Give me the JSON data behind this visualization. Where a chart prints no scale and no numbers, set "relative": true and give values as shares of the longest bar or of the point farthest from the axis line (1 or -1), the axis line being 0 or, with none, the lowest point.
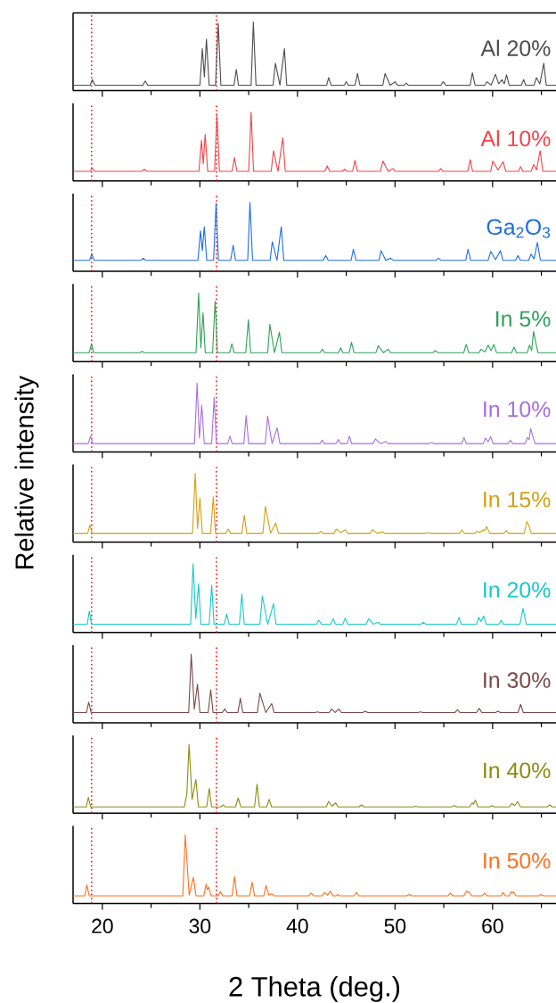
{
  "chart_data": [
    {
      "type": "line",
      "relative": true,
      "xlim": [
        17,
        66.5
      ],
      "tick_labels": false,
      "xticks": [
        20,
        {
          "value": 25,
          "label": null
        },
        30,
        {
          "value": 35,
          "label": null
        },
        40,
        {
          "value": 45,
          "label": null
        },
        50,
        {
          "value": 55,
          "label": null
        },
        60,
        {
          "value": 65,
          "label": null
        }
      ],
      "ref_lines": [
        {
          "axis": "x",
          "value": 18.9,
          "color": "#ff0000",
          "line_style": "dotted"
        },
        {
          "axis": "x",
          "value": 31.7,
          "color": "#ff0000",
          "line_style": "dotted"
        }
      ],
      "x": [
        17,
        18.75,
        18.98,
        19.25,
        24.15,
        24.4,
        24.65,
        30.0,
        30.25,
        30.46,
        30.67,
        30.95,
        31.6,
        31.88,
        32.15,
        33.5,
        33.73,
        33.95,
        35.25,
        35.48,
        35.75,
        37.5,
        37.74,
        38.2,
        38.66,
        38.9,
        43.0,
        43.2,
        43.45,
        44.8,
        45.0,
        45.2,
        45.9,
        46.15,
        46.4,
        48.75,
        48.98,
        49.5,
        50.0,
        50.25,
        50.95,
        51.15,
        51.35,
        54.7,
        54.94,
        55.2,
        57.7,
        57.93,
        58.2,
        59.2,
        59.43,
        59.85,
        60.29,
        60.62,
        60.96,
        61.2,
        61.43,
        61.7,
        62.95,
        63.18,
        63.4,
        64.25,
        64.49,
        64.85,
        65.25,
        65.5,
        66.5
      ],
      "series": [
        {
          "name": "Al 20%",
          "color": "#4d4d4d",
          "values": [
            0.08,
            0.08,
            0.16,
            0.08,
            0.08,
            0.14,
            0.08,
            0.08,
            0.61,
            0.2,
            0.75,
            0.08,
            0.08,
            0.98,
            0.08,
            0.08,
            0.31,
            0.08,
            0.08,
            1,
            0.08,
            0.08,
            0.4,
            0.08,
            0.61,
            0.08,
            0.08,
            0.19,
            0.08,
            0.08,
            0.13,
            0.08,
            0.08,
            0.25,
            0.08,
            0.08,
            0.25,
            0.08,
            0.13,
            0.08,
            0.08,
            0.11,
            0.08,
            0.08,
            0.13,
            0.08,
            0.08,
            0.26,
            0.08,
            0.08,
            0.13,
            0.08,
            0.24,
            0.1,
            0.16,
            0.1,
            0.23,
            0.08,
            0.08,
            0.16,
            0.08,
            0.08,
            0.19,
            0.1,
            0.4,
            0.08,
            0.08
          ]
        }
      ]
    },
    {
      "type": "line",
      "relative": true,
      "xlim": [
        17,
        66.5
      ],
      "tick_labels": false,
      "xticks": [
        20,
        {
          "value": 25,
          "label": null
        },
        30,
        {
          "value": 35,
          "label": null
        },
        40,
        {
          "value": 45,
          "label": null
        },
        50,
        {
          "value": 55,
          "label": null
        },
        60,
        {
          "value": 65,
          "label": null
        }
      ],
      "ref_lines": [
        {
          "axis": "x",
          "value": 18.9,
          "color": "#ff0000",
          "line_style": "dotted"
        },
        {
          "axis": "x",
          "value": 31.7,
          "color": "#ff0000",
          "line_style": "dotted"
        }
      ],
      "x": [
        17,
        18.75,
        18.98,
        19.2,
        24.05,
        24.3,
        24.55,
        29.9,
        30.16,
        30.35,
        30.54,
        30.8,
        31.5,
        31.75,
        32.0,
        33.3,
        33.54,
        33.8,
        35.0,
        35.25,
        35.5,
        37.3,
        37.55,
        38.0,
        38.5,
        38.75,
        42.8,
        43.06,
        43.3,
        44.6,
        44.84,
        45.1,
        45.65,
        45.89,
        46.15,
        48.5,
        48.76,
        49.3,
        49.78,
        50.0,
        54.45,
        54.68,
        54.9,
        57.45,
        57.71,
        57.95,
        59.8,
        60.03,
        60.55,
        61.08,
        61.35,
        62.65,
        62.87,
        63.1,
        63.95,
        64.2,
        64.5,
        64.87,
        65.15,
        66.5
      ],
      "series": [
        {
          "name": "Al 10%",
          "color": "#f0444a",
          "values": [
            0.14,
            0.14,
            0.19,
            0.14,
            0.14,
            0.17,
            0.14,
            0.14,
            0.59,
            0.25,
            0.68,
            0.14,
            0.14,
            0.96,
            0.14,
            0.14,
            0.34,
            0.14,
            0.14,
            1,
            0.14,
            0.14,
            0.44,
            0.14,
            0.63,
            0.14,
            0.14,
            0.22,
            0.14,
            0.14,
            0.17,
            0.14,
            0.14,
            0.3,
            0.14,
            0.14,
            0.29,
            0.14,
            0.18,
            0.14,
            0.14,
            0.18,
            0.14,
            0.14,
            0.31,
            0.14,
            0.14,
            0.29,
            0.16,
            0.28,
            0.14,
            0.14,
            0.21,
            0.14,
            0.14,
            0.24,
            0.16,
            0.44,
            0.14,
            0.14
          ]
        }
      ]
    },
    {
      "type": "line",
      "relative": true,
      "xlim": [
        17,
        66.5
      ],
      "tick_labels": false,
      "xticks": [
        20,
        {
          "value": 25,
          "label": null
        },
        30,
        {
          "value": 35,
          "label": null
        },
        40,
        {
          "value": 45,
          "label": null
        },
        50,
        {
          "value": 55,
          "label": null
        },
        60,
        {
          "value": 65,
          "label": null
        }
      ],
      "ref_lines": [
        {
          "axis": "x",
          "value": 18.9,
          "color": "#ff0000",
          "line_style": "dotted"
        },
        {
          "axis": "x",
          "value": 31.7,
          "color": "#ff0000",
          "line_style": "dotted"
        }
      ],
      "x": [
        17,
        18.7,
        18.92,
        19.15,
        23.95,
        24.2,
        24.45,
        29.8,
        30.06,
        30.25,
        30.45,
        30.7,
        31.4,
        31.66,
        31.9,
        33.15,
        33.41,
        33.65,
        34.9,
        35.13,
        35.4,
        37.2,
        37.42,
        37.9,
        38.34,
        38.6,
        42.65,
        42.9,
        43.15,
        45.5,
        45.73,
        46.0,
        48.35,
        48.57,
        49.05,
        49.55,
        49.8,
        54.2,
        54.46,
        54.7,
        57.25,
        57.48,
        57.75,
        59.55,
        59.81,
        60.3,
        60.8,
        61.05,
        62.35,
        62.6,
        62.85,
        63.7,
        63.94,
        64.25,
        64.59,
        64.9,
        66.5
      ],
      "series": [
        {
          "name": "Ga$_{2}$O$_{3}$",
          "color": "#1f6fe0",
          "values": [
            0.16,
            0.16,
            0.25,
            0.16,
            0.16,
            0.19,
            0.16,
            0.16,
            0.59,
            0.3,
            0.65,
            0.16,
            0.16,
            0.99,
            0.16,
            0.16,
            0.38,
            0.16,
            0.16,
            1,
            0.16,
            0.16,
            0.43,
            0.16,
            0.65,
            0.16,
            0.16,
            0.23,
            0.16,
            0.16,
            0.32,
            0.16,
            0.16,
            0.3,
            0.16,
            0.19,
            0.16,
            0.16,
            0.19,
            0.16,
            0.16,
            0.32,
            0.16,
            0.16,
            0.29,
            0.17,
            0.3,
            0.16,
            0.16,
            0.23,
            0.16,
            0.16,
            0.25,
            0.18,
            0.42,
            0.16,
            0.16
          ]
        }
      ]
    },
    {
      "type": "line",
      "relative": true,
      "xlim": [
        17,
        66.5
      ],
      "tick_labels": false,
      "xticks": [
        20,
        {
          "value": 25,
          "label": null
        },
        30,
        {
          "value": 35,
          "label": null
        },
        40,
        {
          "value": 45,
          "label": null
        },
        50,
        {
          "value": 55,
          "label": null
        },
        60,
        {
          "value": 65,
          "label": null
        }
      ],
      "ref_lines": [
        {
          "axis": "x",
          "value": 18.9,
          "color": "#ff0000",
          "line_style": "dotted"
        },
        {
          "axis": "x",
          "value": 31.7,
          "color": "#ff0000",
          "line_style": "dotted"
        }
      ],
      "x": [
        17,
        18.65,
        18.89,
        19.1,
        23.85,
        24.08,
        24.3,
        29.6,
        29.87,
        30.1,
        30.32,
        30.55,
        31.3,
        31.56,
        31.8,
        33.05,
        33.28,
        33.5,
        34.7,
        34.97,
        35.2,
        36.95,
        37.17,
        37.65,
        38.15,
        38.4,
        42.3,
        42.55,
        42.8,
        44.2,
        44.43,
        44.65,
        45.3,
        45.54,
        45.8,
        48.05,
        48.28,
        48.8,
        49.3,
        49.55,
        53.9,
        54.14,
        54.4,
        57.05,
        57.29,
        57.55,
        58.6,
        58.82,
        59.2,
        59.55,
        59.85,
        60.13,
        60.4,
        61.95,
        62.2,
        62.45,
        63.55,
        63.79,
        64.0,
        64.2,
        64.39,
        64.65,
        66.5
      ],
      "series": [
        {
          "name": "In 5%",
          "color": "#2ea05a",
          "values": [
            0.13,
            0.13,
            0.26,
            0.13,
            0.13,
            0.15,
            0.13,
            0.13,
            1,
            0.2,
            0.71,
            0.13,
            0.13,
            0.88,
            0.13,
            0.13,
            0.26,
            0.13,
            0.13,
            0.61,
            0.13,
            0.13,
            0.54,
            0.13,
            0.43,
            0.13,
            0.13,
            0.18,
            0.13,
            0.13,
            0.2,
            0.13,
            0.13,
            0.28,
            0.13,
            0.13,
            0.23,
            0.13,
            0.18,
            0.13,
            0.13,
            0.16,
            0.13,
            0.13,
            0.25,
            0.13,
            0.13,
            0.18,
            0.14,
            0.24,
            0.16,
            0.25,
            0.13,
            0.13,
            0.21,
            0.13,
            0.13,
            0.24,
            0.16,
            0.44,
            0.3,
            0.13,
            0.13
          ]
        }
      ]
    },
    {
      "type": "line",
      "relative": true,
      "xlim": [
        17,
        66.5
      ],
      "tick_labels": false,
      "xticks": [
        20,
        {
          "value": 25,
          "label": null
        },
        30,
        {
          "value": 35,
          "label": null
        },
        40,
        {
          "value": 45,
          "label": null
        },
        50,
        {
          "value": 55,
          "label": null
        },
        60,
        {
          "value": 65,
          "label": null
        }
      ],
      "ref_lines": [
        {
          "axis": "x",
          "value": 18.9,
          "color": "#ff0000",
          "line_style": "dotted"
        },
        {
          "axis": "x",
          "value": 31.7,
          "color": "#ff0000",
          "line_style": "dotted"
        }
      ],
      "x": [
        17,
        18.55,
        18.79,
        19.0,
        29.45,
        29.71,
        29.95,
        30.19,
        30.45,
        31.2,
        31.46,
        31.7,
        32.85,
        33.09,
        33.3,
        34.5,
        34.74,
        35.0,
        36.7,
        36.94,
        37.4,
        37.92,
        38.2,
        42.3,
        42.54,
        42.75,
        43.95,
        44.2,
        44.45,
        45.1,
        45.32,
        45.55,
        47.75,
        47.99,
        48.5,
        49.04,
        49.3,
        53.5,
        53.76,
        54.0,
        56.85,
        57.07,
        57.3,
        59.05,
        59.27,
        59.55,
        59.81,
        60.05,
        61.6,
        61.82,
        62.05,
        63.35,
        63.57,
        63.75,
        63.89,
        64.08,
        64.35,
        66.5
      ],
      "series": [
        {
          "name": "In 10%",
          "color": "#a86ee0",
          "values": [
            0.12,
            0.12,
            0.23,
            0.12,
            0.12,
            1,
            0.2,
            0.68,
            0.12,
            0.12,
            0.79,
            0.12,
            0.12,
            0.23,
            0.12,
            0.12,
            0.53,
            0.12,
            0.12,
            0.52,
            0.12,
            0.35,
            0.12,
            0.12,
            0.17,
            0.12,
            0.12,
            0.18,
            0.12,
            0.12,
            0.23,
            0.12,
            0.12,
            0.19,
            0.12,
            0.15,
            0.12,
            0.12,
            0.14,
            0.12,
            0.12,
            0.21,
            0.12,
            0.12,
            0.2,
            0.15,
            0.22,
            0.12,
            0.12,
            0.17,
            0.12,
            0.12,
            0.21,
            0.18,
            0.34,
            0.25,
            0.12,
            0.12
          ]
        }
      ]
    },
    {
      "type": "line",
      "relative": true,
      "xlim": [
        17,
        66.5
      ],
      "tick_labels": false,
      "ylabel": "Relative intensity",
      "xticks": [
        20,
        {
          "value": 25,
          "label": null
        },
        30,
        {
          "value": 35,
          "label": null
        },
        40,
        {
          "value": 45,
          "label": null
        },
        50,
        {
          "value": 55,
          "label": null
        },
        60,
        {
          "value": 65,
          "label": null
        }
      ],
      "ref_lines": [
        {
          "axis": "x",
          "value": 18.9,
          "color": "#ff0000",
          "line_style": "dotted"
        },
        {
          "axis": "x",
          "value": 31.7,
          "color": "#ff0000",
          "line_style": "dotted"
        }
      ],
      "x": [
        17,
        18.5,
        18.73,
        18.95,
        29.25,
        29.52,
        29.76,
        30.0,
        30.25,
        31.1,
        31.37,
        31.6,
        32.65,
        32.9,
        33.15,
        34.3,
        34.55,
        34.8,
        36.45,
        36.72,
        37.25,
        37.77,
        38.05,
        42.15,
        42.39,
        42.6,
        43.75,
        43.98,
        44.45,
        44.9,
        45.15,
        47.45,
        47.68,
        48.2,
        48.69,
        48.95,
        53.15,
        53.38,
        53.6,
        56.6,
        56.85,
        57.1,
        58.2,
        58.41,
        58.7,
        59.04,
        59.2,
        59.39,
        59.7,
        61.15,
        61.4,
        61.65,
        63.25,
        63.5,
        63.6,
        63.69,
        63.95,
        66.5
      ],
      "series": [
        {
          "name": "In 15%",
          "color": "#d4a010",
          "values": [
            0.13,
            0.13,
            0.25,
            0.13,
            0.13,
            1,
            0.2,
            0.64,
            0.13,
            0.13,
            0.66,
            0.13,
            0.13,
            0.19,
            0.13,
            0.13,
            0.39,
            0.13,
            0.13,
            0.52,
            0.13,
            0.28,
            0.13,
            0.13,
            0.16,
            0.13,
            0.13,
            0.19,
            0.14,
            0.18,
            0.13,
            0.13,
            0.18,
            0.13,
            0.15,
            0.13,
            0.13,
            0.14,
            0.13,
            0.13,
            0.18,
            0.13,
            0.13,
            0.16,
            0.14,
            0.18,
            0.17,
            0.23,
            0.13,
            0.13,
            0.17,
            0.13,
            0.13,
            0.3,
            0.27,
            0.26,
            0.13,
            0.13
          ]
        }
      ]
    },
    {
      "type": "line",
      "relative": true,
      "xlim": [
        17,
        66.5
      ],
      "tick_labels": false,
      "xticks": [
        20,
        {
          "value": 25,
          "label": null
        },
        30,
        {
          "value": 35,
          "label": null
        },
        40,
        {
          "value": 45,
          "label": null
        },
        50,
        {
          "value": 55,
          "label": null
        },
        60,
        {
          "value": 65,
          "label": null
        }
      ],
      "ref_lines": [
        {
          "axis": "x",
          "value": 18.9,
          "color": "#ff0000",
          "line_style": "dotted"
        },
        {
          "axis": "x",
          "value": 31.7,
          "color": "#ff0000",
          "line_style": "dotted"
        }
      ],
      "x": [
        17,
        18.45,
        18.66,
        18.9,
        29.05,
        29.3,
        29.58,
        29.87,
        30.1,
        30.95,
        31.21,
        31.45,
        32.5,
        32.74,
        33.0,
        34.05,
        34.3,
        34.55,
        36.15,
        36.4,
        36.95,
        37.55,
        37.8,
        41.95,
        42.2,
        42.45,
        43.4,
        43.66,
        43.9,
        44.65,
        44.9,
        45.15,
        47.05,
        47.29,
        47.8,
        48.28,
        48.5,
        52.65,
        52.9,
        53.15,
        56.3,
        56.56,
        56.8,
        58.35,
        58.57,
        58.8,
        59.08,
        59.35,
        60.65,
        60.89,
        61.1,
        62.8,
        63.12,
        63.45,
        66.5
      ],
      "series": [
        {
          "name": "In 20%",
          "color": "#1ac8c8",
          "values": [
            0.12,
            0.12,
            0.31,
            0.12,
            0.12,
            1,
            0.2,
            0.71,
            0.12,
            0.12,
            0.69,
            0.12,
            0.12,
            0.27,
            0.12,
            0.12,
            0.56,
            0.12,
            0.12,
            0.53,
            0.12,
            0.42,
            0.12,
            0.12,
            0.18,
            0.12,
            0.12,
            0.2,
            0.12,
            0.12,
            0.21,
            0.12,
            0.12,
            0.2,
            0.12,
            0.15,
            0.12,
            0.12,
            0.15,
            0.12,
            0.12,
            0.22,
            0.12,
            0.12,
            0.22,
            0.16,
            0.24,
            0.12,
            0.12,
            0.18,
            0.12,
            0.12,
            0.35,
            0.12,
            0.12
          ]
        }
      ]
    },
    {
      "type": "line",
      "relative": true,
      "xlim": [
        17,
        66.5
      ],
      "tick_labels": false,
      "xticks": [
        20,
        {
          "value": 25,
          "label": null
        },
        30,
        {
          "value": 35,
          "label": null
        },
        40,
        {
          "value": 45,
          "label": null
        },
        50,
        {
          "value": 55,
          "label": null
        },
        60,
        {
          "value": 65,
          "label": null
        }
      ],
      "ref_lines": [
        {
          "axis": "x",
          "value": 18.9,
          "color": "#ff0000",
          "line_style": "dotted"
        },
        {
          "axis": "x",
          "value": 31.7,
          "color": "#ff0000",
          "line_style": "dotted"
        }
      ],
      "x": [
        17,
        18.38,
        18.6,
        18.85,
        28.85,
        29.11,
        29.43,
        29.75,
        30.0,
        30.85,
        31.11,
        31.35,
        32.3,
        32.55,
        32.8,
        33.9,
        34.14,
        34.4,
        35.9,
        36.15,
        36.75,
        37.36,
        37.6,
        41.8,
        42.04,
        42.3,
        43.25,
        43.5,
        43.87,
        44.24,
        44.5,
        46.7,
        46.94,
        47.2,
        52.35,
        52.61,
        52.85,
        56.15,
        56.4,
        56.65,
        58.35,
        58.63,
        58.9,
        60.3,
        60.54,
        60.8,
        62.6,
        62.87,
        63.15,
        66.5
      ],
      "series": [
        {
          "name": "In 30%",
          "color": "#7a4a4a",
          "values": [
            0.15,
            0.15,
            0.3,
            0.15,
            0.15,
            1,
            0.2,
            0.56,
            0.15,
            0.15,
            0.48,
            0.15,
            0.15,
            0.2,
            0.15,
            0.15,
            0.36,
            0.15,
            0.15,
            0.43,
            0.15,
            0.28,
            0.15,
            0.15,
            0.16,
            0.15,
            0.15,
            0.2,
            0.15,
            0.2,
            0.15,
            0.15,
            0.17,
            0.15,
            0.15,
            0.16,
            0.15,
            0.15,
            0.19,
            0.15,
            0.15,
            0.21,
            0.15,
            0.15,
            0.17,
            0.15,
            0.15,
            0.27,
            0.15,
            0.15
          ]
        }
      ]
    },
    {
      "type": "line",
      "relative": true,
      "xlim": [
        17,
        66.5
      ],
      "tick_labels": false,
      "xticks": [
        20,
        {
          "value": 25,
          "label": null
        },
        30,
        {
          "value": 35,
          "label": null
        },
        40,
        {
          "value": 45,
          "label": null
        },
        50,
        {
          "value": 55,
          "label": null
        },
        60,
        {
          "value": 65,
          "label": null
        }
      ],
      "ref_lines": [
        {
          "axis": "x",
          "value": 18.9,
          "color": "#ff0000",
          "line_style": "dotted"
        },
        {
          "axis": "x",
          "value": 31.7,
          "color": "#ff0000",
          "line_style": "dotted"
        }
      ],
      "x": [
        17,
        18.35,
        18.57,
        18.8,
        28.4,
        28.66,
        28.89,
        29.2,
        29.59,
        29.85,
        30.7,
        30.96,
        31.2,
        32.15,
        32.39,
        32.6,
        33.65,
        33.92,
        34.2,
        35.6,
        35.86,
        36.1,
        36.85,
        37.1,
        37.35,
        42.95,
        43.18,
        43.55,
        43.92,
        44.15,
        46.3,
        46.56,
        46.8,
        51.85,
        52.1,
        52.35,
        55.8,
        56.08,
        56.35,
        57.65,
        57.9,
        58.05,
        58.22,
        58.5,
        59.7,
        59.97,
        60.2,
        61.7,
        61.97,
        62.27,
        62.58,
        62.85,
        65.6,
        65.86,
        66.1,
        66.5
      ],
      "series": [
        {
          "name": "In 40%",
          "color": "#8c8c10",
          "values": [
            0.09,
            0.09,
            0.23,
            0.09,
            0.09,
            0.28,
            1,
            0.2,
            0.49,
            0.09,
            0.09,
            0.36,
            0.09,
            0.09,
            0.12,
            0.09,
            0.09,
            0.22,
            0.09,
            0.09,
            0.42,
            0.09,
            0.09,
            0.2,
            0.09,
            0.09,
            0.17,
            0.1,
            0.15,
            0.09,
            0.09,
            0.12,
            0.09,
            0.09,
            0.1,
            0.09,
            0.09,
            0.11,
            0.09,
            0.09,
            0.15,
            0.13,
            0.19,
            0.09,
            0.09,
            0.11,
            0.09,
            0.09,
            0.14,
            0.11,
            0.17,
            0.09,
            0.09,
            0.12,
            0.09,
            0.09
          ]
        }
      ]
    },
    {
      "type": "line",
      "relative": true,
      "xlim": [
        17,
        66.5
      ],
      "tick_labels": "x",
      "xlabel": "2 Theta (deg.)",
      "xticks": [
        20,
        {
          "value": 25,
          "label": null
        },
        30,
        {
          "value": 35,
          "label": null
        },
        40,
        {
          "value": 45,
          "label": null
        },
        50,
        {
          "value": 55,
          "label": null
        },
        60,
        {
          "value": 65,
          "label": null
        }
      ],
      "ref_lines": [
        {
          "axis": "x",
          "value": 18.9,
          "color": "#ff0000",
          "line_style": "dotted"
        },
        {
          "axis": "x",
          "value": 31.7,
          "color": "#ff0000",
          "line_style": "dotted"
        }
      ],
      "x": [
        17,
        18.2,
        18.41,
        18.65,
        28.25,
        28.5,
        28.9,
        29.33,
        29.6,
        30.4,
        30.64,
        30.76,
        30.89,
        31.15,
        31.85,
        32.1,
        32.35,
        33.3,
        33.54,
        33.8,
        35.1,
        35.35,
        35.6,
        36.55,
        36.78,
        37.07,
        37.36,
        37.6,
        41.15,
        41.4,
        41.65,
        42.55,
        42.77,
        43.07,
        43.38,
        43.65,
        43.95,
        44.14,
        44.35,
        45.8,
        46.05,
        46.3,
        51.2,
        51.46,
        51.7,
        55.45,
        55.67,
        55.9,
        57.05,
        57.32,
        57.45,
        57.58,
        57.85,
        58.95,
        59.2,
        59.45,
        60.85,
        61.08,
        61.3,
        61.7,
        61.91,
        62.02,
        62.13,
        62.4,
        64.75,
        64.97,
        65.2,
        66.5
      ],
      "series": [
        {
          "name": "In 50%",
          "color": "#ff7020",
          "values": [
            0.11,
            0.11,
            0.27,
            0.11,
            0.11,
            1,
            0.12,
            0.38,
            0.11,
            0.11,
            0.28,
            0.2,
            0.24,
            0.11,
            0.11,
            0.17,
            0.11,
            0.11,
            0.39,
            0.11,
            0.11,
            0.31,
            0.11,
            0.11,
            0.26,
            0.12,
            0.14,
            0.11,
            0.11,
            0.15,
            0.11,
            0.11,
            0.16,
            0.12,
            0.18,
            0.11,
            0.11,
            0.13,
            0.11,
            0.11,
            0.16,
            0.11,
            0.11,
            0.13,
            0.11,
            0.11,
            0.15,
            0.11,
            0.11,
            0.18,
            0.16,
            0.17,
            0.11,
            0.11,
            0.15,
            0.11,
            0.11,
            0.16,
            0.11,
            0.11,
            0.17,
            0.15,
            0.17,
            0.11,
            0.11,
            0.13,
            0.11,
            0.11
          ]
        }
      ]
    }
  ]
}
